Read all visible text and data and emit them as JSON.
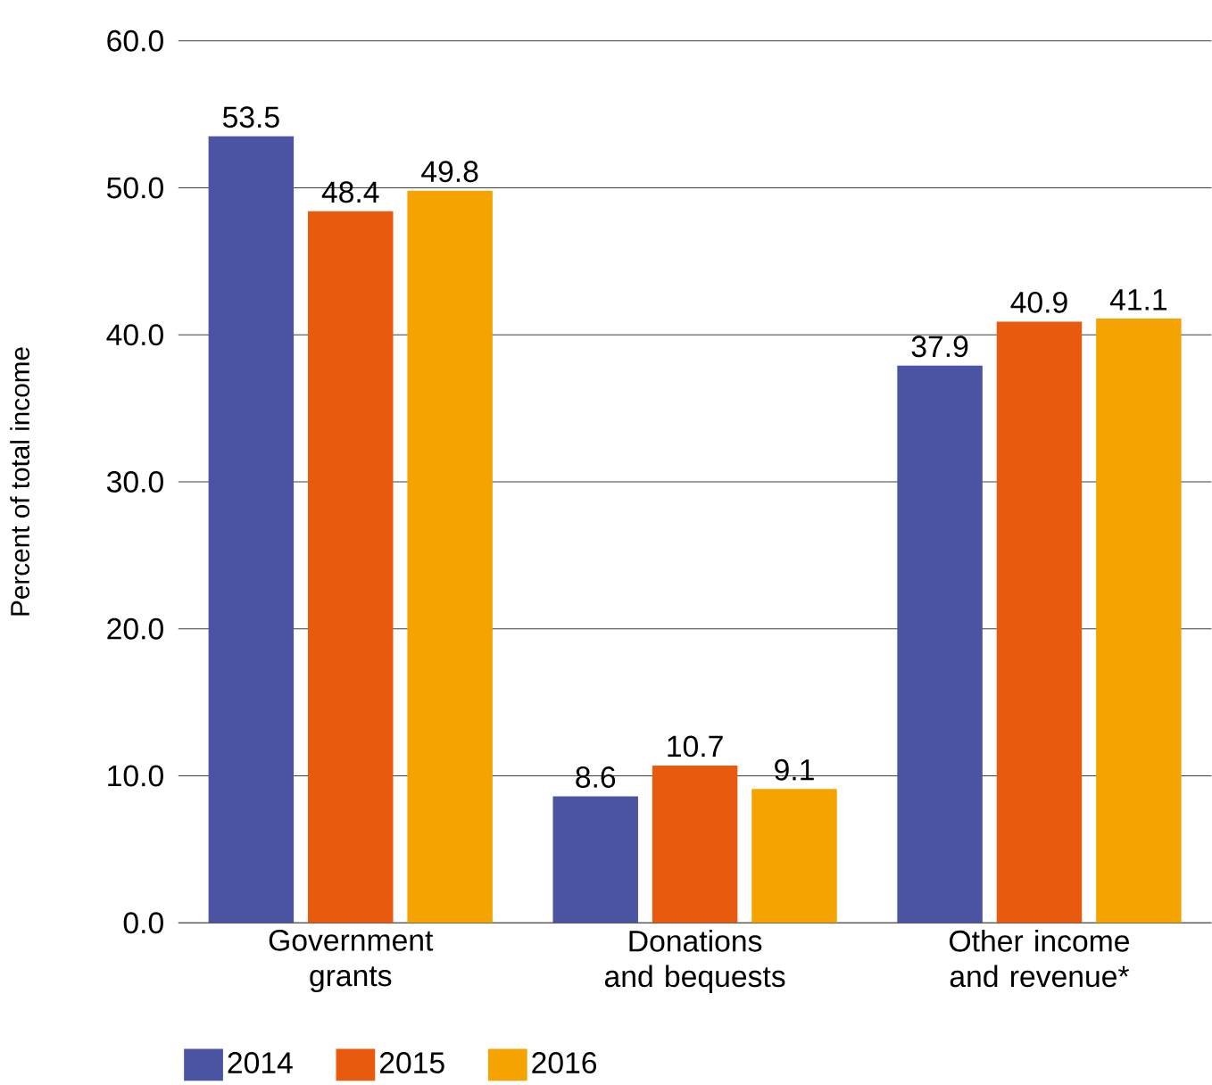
{
  "chart_data": {
    "type": "bar",
    "ylabel": "Percent of total income",
    "categories": [
      "Government grants",
      "Donations and bequests",
      "Other income and revenue*"
    ],
    "series": [
      {
        "name": "2014",
        "color": "#4a54a3",
        "values": [
          53.5,
          8.6,
          37.9
        ]
      },
      {
        "name": "2015",
        "color": "#e85b0f",
        "values": [
          48.4,
          10.7,
          40.9
        ]
      },
      {
        "name": "2016",
        "color": "#f4a300",
        "values": [
          49.8,
          9.1,
          41.1
        ]
      }
    ],
    "ylim": [
      0,
      60
    ],
    "yticks": [
      {
        "value": 0,
        "label": "0.0"
      },
      {
        "value": 10,
        "label": "10.0"
      },
      {
        "value": 20,
        "label": "20.0"
      },
      {
        "value": 30,
        "label": "30.0"
      },
      {
        "value": 40,
        "label": "40.0"
      },
      {
        "value": 50,
        "label": "50.0"
      },
      {
        "value": 60,
        "label": "60.0"
      }
    ],
    "grid": "y",
    "legend": "bottom",
    "data_labels": true
  }
}
